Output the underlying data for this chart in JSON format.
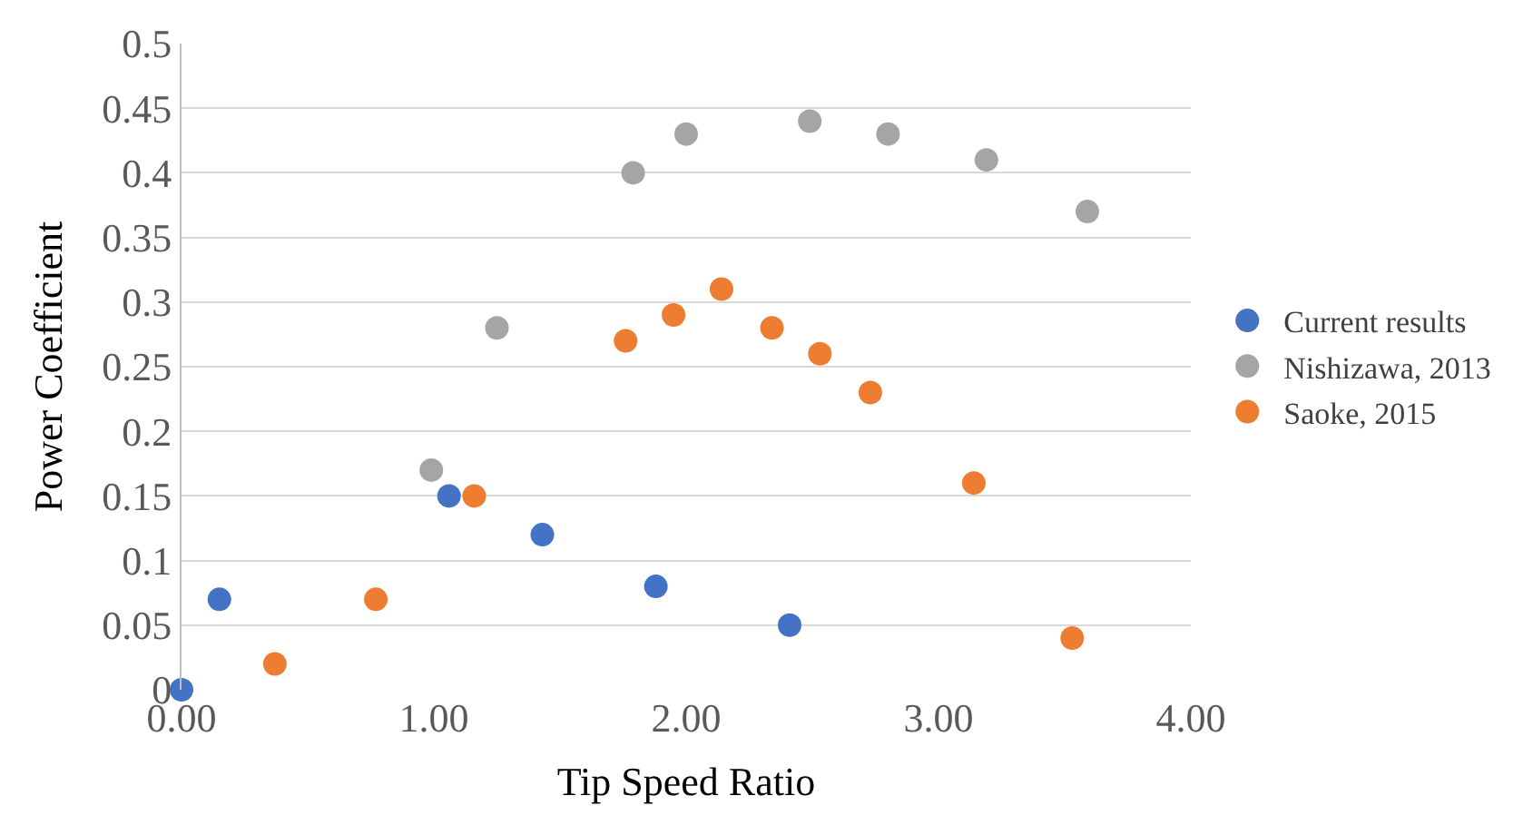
{
  "chart_data": {
    "type": "scatter",
    "xlabel": "Tip Speed Ratio",
    "ylabel": "Power Coefficient",
    "xlim": [
      0,
      4
    ],
    "xticks": [
      {
        "value": 0,
        "label": "0.00"
      },
      {
        "value": 1,
        "label": "1.00"
      },
      {
        "value": 2,
        "label": "2.00"
      },
      {
        "value": 3,
        "label": "3.00"
      },
      {
        "value": 4,
        "label": "4.00"
      }
    ],
    "ylim": [
      0,
      0.5
    ],
    "yticks": [
      0,
      0.05,
      0.1,
      0.15,
      0.2,
      0.25,
      0.3,
      0.35,
      0.4,
      0.45,
      0.5
    ],
    "grid": "y",
    "legend": "right",
    "marker": "circle",
    "series": [
      {
        "name": "Current results",
        "color": "#4472c4",
        "x": [
          0,
          0.15,
          1.06,
          1.43,
          1.88,
          2.41
        ],
        "values": [
          0,
          0.07,
          0.15,
          0.12,
          0.08,
          0.05
        ]
      },
      {
        "name": "Nishizawa, 2013",
        "color": "#a5a5a5",
        "x": [
          0.99,
          1.25,
          1.79,
          2.0,
          2.49,
          2.8,
          3.19,
          3.59
        ],
        "values": [
          0.17,
          0.28,
          0.4,
          0.43,
          0.44,
          0.43,
          0.41,
          0.37
        ]
      },
      {
        "name": "Saoke, 2015",
        "color": "#ed7d31",
        "x": [
          0.37,
          0.77,
          1.16,
          1.76,
          1.95,
          2.14,
          2.34,
          2.53,
          2.73,
          3.14,
          3.53
        ],
        "values": [
          0.02,
          0.07,
          0.15,
          0.27,
          0.29,
          0.31,
          0.28,
          0.26,
          0.23,
          0.16,
          0.04
        ]
      }
    ]
  }
}
